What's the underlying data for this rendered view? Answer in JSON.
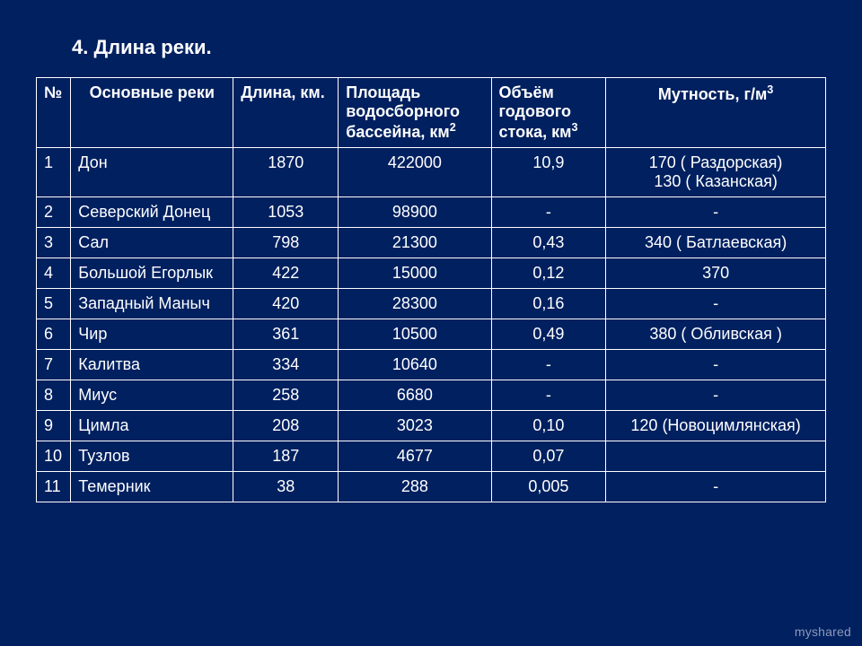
{
  "title": "4. Длина реки.",
  "columns": {
    "num": "№",
    "name": "Основные реки",
    "length": "Длина, км.",
    "area_a": "Площадь водосборного бассейна, км",
    "area_sup": "2",
    "volume_a": "Объём годового стока, км",
    "volume_sup": "3",
    "turbidity_a": "Мутность, г/м",
    "turbidity_sup": "3"
  },
  "rows": [
    {
      "num": "1",
      "name": "Дон",
      "length": "1870",
      "area": "422000",
      "volume": "10,9",
      "turb1": "170 ( Раздорская)",
      "turb2": "130 ( Казанская)"
    },
    {
      "num": "2",
      "name": "Северский Донец",
      "length": "1053",
      "area": "98900",
      "volume": "-",
      "turb1": "-"
    },
    {
      "num": "3",
      "name": "Сал",
      "length": "798",
      "area": "21300",
      "volume": "0,43",
      "turb1": "340 ( Батлаевская)"
    },
    {
      "num": "4",
      "name": "Большой Егорлык",
      "length": "422",
      "area": "15000",
      "volume": "0,12",
      "turb1": "370"
    },
    {
      "num": "5",
      "name": "Западный Маныч",
      "length": "420",
      "area": "28300",
      "volume": "0,16",
      "turb1": "-"
    },
    {
      "num": "6",
      "name": "Чир",
      "length": "361",
      "area": "10500",
      "volume": "0,49",
      "turb1": "380 ( Обливская )"
    },
    {
      "num": "7",
      "name": "Калитва",
      "length": "334",
      "area": "10640",
      "volume": "-",
      "turb1": "-"
    },
    {
      "num": "8",
      "name": "Миус",
      "length": "258",
      "area": "6680",
      "volume": "-",
      "turb1": "-"
    },
    {
      "num": "9",
      "name": "Цимла",
      "length": "208",
      "area": "3023",
      "volume": "0,10",
      "turb1": "120 (Новоцимлянская)"
    },
    {
      "num": "10",
      "name": "Тузлов",
      "length": "187",
      "area": "4677",
      "volume": "0,07",
      "turb1": ""
    },
    {
      "num": "11",
      "name": "Темерник",
      "length": "38",
      "area": "288",
      "volume": "0,005",
      "turb1": "-"
    }
  ],
  "watermark": "myshared"
}
